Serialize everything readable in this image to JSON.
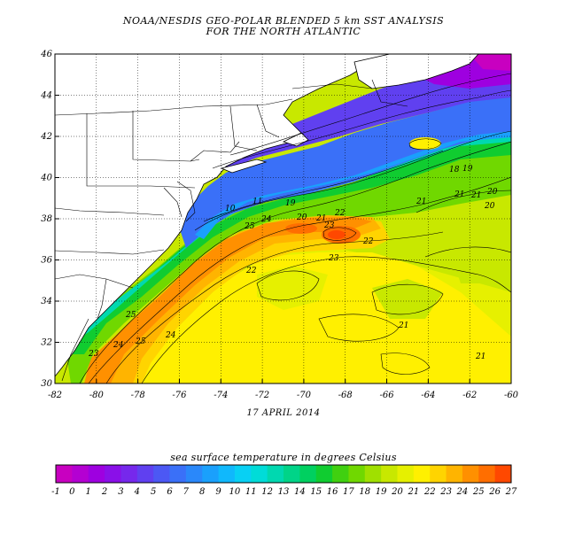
{
  "title_line1": "NOAA/NESDIS GEO-POLAR BLENDED 5 km SST ANALYSIS",
  "title_line2": "FOR THE NORTH ATLANTIC",
  "date": "17 APRIL 2014",
  "colorbar_title": "sea surface temperature in degrees Celsius",
  "map": {
    "lon_range": [
      -82,
      -60
    ],
    "lat_range": [
      30,
      46
    ],
    "lon_ticks": [
      "-82",
      "-80",
      "-78",
      "-76",
      "-74",
      "-72",
      "-70",
      "-68",
      "-66",
      "-64",
      "-62",
      "-60"
    ],
    "lat_ticks": [
      "30",
      "32",
      "34",
      "36",
      "38",
      "40",
      "42",
      "44",
      "46"
    ],
    "contour_labels": [
      "23",
      "24",
      "25",
      "21",
      "18",
      "19",
      "21",
      "20",
      "20",
      "21",
      "21",
      "22",
      "23",
      "22",
      "25",
      "24",
      "21",
      "11",
      "10",
      "19",
      "20",
      "21",
      "22",
      "23",
      "24",
      "25"
    ]
  },
  "colorbar": {
    "labels": [
      "-1",
      "0",
      "1",
      "2",
      "3",
      "4",
      "5",
      "6",
      "7",
      "8",
      "9",
      "10",
      "11",
      "12",
      "13",
      "14",
      "15",
      "16",
      "17",
      "18",
      "19",
      "20",
      "21",
      "22",
      "23",
      "24",
      "25",
      "26",
      "27"
    ],
    "colors": [
      "#c800c0",
      "#b400d2",
      "#9e00e0",
      "#8a10e8",
      "#7628ec",
      "#6040f0",
      "#4c58f4",
      "#3a70f8",
      "#2a88fa",
      "#1aa0fc",
      "#10b8fc",
      "#08d0f4",
      "#00dcd8",
      "#00d8b0",
      "#00d488",
      "#00d060",
      "#10cc30",
      "#40d010",
      "#70d800",
      "#a0e000",
      "#c8e800",
      "#e6f000",
      "#fff000",
      "#ffd400",
      "#ffb400",
      "#ff9000",
      "#ff6e00",
      "#ff4800"
    ]
  }
}
